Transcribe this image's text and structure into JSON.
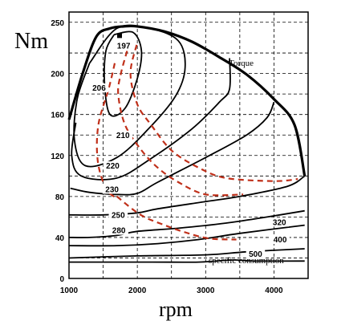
{
  "chart_data": {
    "type": "contour",
    "xlabel": "rpm",
    "ylabel": "Nm",
    "xlim": [
      1000,
      4500
    ],
    "ylim": [
      0,
      260
    ],
    "x_ticks": [
      "1000",
      "2000",
      "3000",
      "4000"
    ],
    "y_ticks": [
      "0",
      "40",
      "80",
      "120",
      "160",
      "200",
      "250"
    ],
    "grid": true,
    "torque_curve": {
      "label": "Torque",
      "points": [
        [
          1000,
          155
        ],
        [
          1200,
          200
        ],
        [
          1400,
          236
        ],
        [
          1600,
          244
        ],
        [
          1800,
          246
        ],
        [
          2000,
          246
        ],
        [
          2400,
          241
        ],
        [
          2800,
          231
        ],
        [
          3200,
          216
        ],
        [
          3600,
          199
        ],
        [
          4000,
          175
        ],
        [
          4300,
          150
        ],
        [
          4450,
          100
        ]
      ]
    },
    "min_point": {
      "label": "197",
      "x": 1740,
      "y": 237
    },
    "contours": [
      {
        "label": "206",
        "points": [
          [
            1660,
            238
          ],
          [
            1540,
            222
          ],
          [
            1520,
            190
          ],
          [
            1600,
            160
          ],
          [
            1820,
            166
          ],
          [
            2000,
            195
          ],
          [
            2060,
            222
          ],
          [
            1940,
            240
          ],
          [
            1660,
            238
          ]
        ]
      },
      {
        "label": "210",
        "points": [
          [
            1300,
            210
          ],
          [
            1120,
            175
          ],
          [
            1080,
            135
          ],
          [
            1240,
            110
          ],
          [
            1700,
            118
          ],
          [
            2150,
            145
          ],
          [
            2560,
            178
          ],
          [
            2700,
            206
          ],
          [
            2600,
            232
          ],
          [
            2180,
            244
          ],
          [
            1700,
            244
          ],
          [
            1300,
            210
          ]
        ]
      },
      {
        "label": "220",
        "points": [
          [
            1100,
            152
          ],
          [
            1040,
            120
          ],
          [
            1180,
            100
          ],
          [
            1700,
            98
          ],
          [
            2200,
            117
          ],
          [
            2800,
            146
          ],
          [
            3200,
            172
          ],
          [
            3350,
            185
          ],
          [
            3350,
            215
          ]
        ]
      },
      {
        "label": "230",
        "points": [
          [
            1020,
            88
          ],
          [
            1300,
            84
          ],
          [
            1700,
            82
          ],
          [
            2000,
            83
          ],
          [
            2300,
            94
          ],
          [
            3000,
            118
          ],
          [
            3600,
            140
          ],
          [
            3900,
            157
          ],
          [
            4000,
            172
          ]
        ]
      },
      {
        "label": "250",
        "points": [
          [
            1000,
            62
          ],
          [
            1500,
            62
          ],
          [
            2000,
            64
          ],
          [
            2300,
            68
          ],
          [
            3000,
            75
          ],
          [
            3500,
            80
          ],
          [
            4200,
            90
          ],
          [
            4450,
            100
          ]
        ]
      },
      {
        "label": "280",
        "points": [
          [
            1000,
            40
          ],
          [
            1300,
            40
          ],
          [
            1700,
            42
          ],
          [
            2000,
            46
          ],
          [
            2600,
            49
          ],
          [
            3300,
            54
          ],
          [
            3900,
            60
          ],
          [
            4450,
            66
          ]
        ]
      },
      {
        "label": "320",
        "points": [
          [
            1000,
            32
          ],
          [
            1700,
            32
          ],
          [
            2300,
            34
          ],
          [
            2900,
            38
          ],
          [
            3500,
            44
          ],
          [
            4450,
            52
          ]
        ]
      },
      {
        "label": "400",
        "points": [
          [
            1000,
            20
          ],
          [
            2000,
            22
          ],
          [
            3000,
            23
          ],
          [
            3600,
            26
          ],
          [
            4450,
            29
          ]
        ]
      },
      {
        "label": "500",
        "points": [
          [
            1000,
            16
          ],
          [
            2200,
            16
          ],
          [
            2900,
            16
          ],
          [
            3400,
            18
          ],
          [
            3700,
            17
          ],
          [
            4450,
            17
          ]
        ]
      }
    ],
    "dashed_lines": [
      [
        [
          1670,
          210
        ],
        [
          1580,
          185
        ],
        [
          1430,
          150
        ],
        [
          1420,
          115
        ],
        [
          1540,
          88
        ],
        [
          1700,
          78
        ]
      ],
      [
        [
          1850,
          222
        ],
        [
          1760,
          200
        ],
        [
          1720,
          180
        ],
        [
          1820,
          150
        ],
        [
          2050,
          126
        ],
        [
          2300,
          108
        ],
        [
          2600,
          94
        ],
        [
          3000,
          82
        ],
        [
          3550,
          82
        ]
      ],
      [
        [
          1990,
          228
        ],
        [
          1900,
          200
        ],
        [
          2000,
          170
        ],
        [
          2200,
          150
        ],
        [
          2500,
          125
        ],
        [
          2900,
          108
        ],
        [
          3300,
          98
        ],
        [
          4000,
          95
        ],
        [
          4350,
          97
        ]
      ],
      [
        [
          1700,
          80
        ],
        [
          2050,
          62
        ],
        [
          2400,
          52
        ],
        [
          2700,
          45
        ],
        [
          3050,
          39
        ],
        [
          3450,
          38
        ]
      ]
    ],
    "annotations": [
      "Torque",
      "specific consumption"
    ]
  }
}
